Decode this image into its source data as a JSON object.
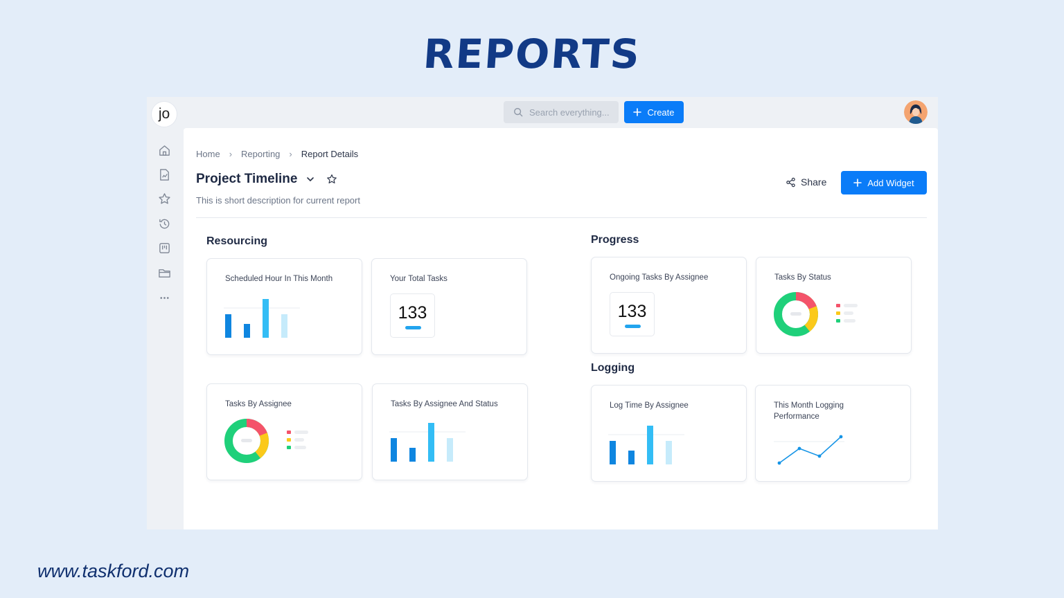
{
  "banner": {
    "heading": "REPORTS",
    "footer_url": "www.taskford.com"
  },
  "app": {
    "logo": "jo",
    "search": {
      "placeholder": "Search everything..."
    },
    "create_label": "Create",
    "sidebar_icons": [
      "home-icon",
      "report-icon",
      "star-icon",
      "history-icon",
      "board-icon",
      "folder-icon",
      "more-icon"
    ]
  },
  "breadcrumb": [
    "Home",
    "Reporting",
    "Report Details"
  ],
  "report": {
    "title": "Project Timeline",
    "description": "This is short description for current report",
    "share_label": "Share",
    "add_widget_label": "Add Widget"
  },
  "sections": {
    "resourcing": "Resourcing",
    "progress": "Progress",
    "logging": "Logging"
  },
  "widgets": {
    "scheduled_hour": {
      "title": "Scheduled Hour In This Month"
    },
    "total_tasks": {
      "title": "Your Total Tasks",
      "value": "133"
    },
    "tasks_by_assignee": {
      "title": "Tasks By Assignee"
    },
    "tasks_by_assignee_status": {
      "title": "Tasks By Assignee And Status"
    },
    "ongoing_tasks": {
      "title": "Ongoing Tasks By Assignee",
      "value": "133"
    },
    "tasks_by_status": {
      "title": "Tasks By Status"
    },
    "log_time": {
      "title": "Log Time By Assignee"
    },
    "logging_performance": {
      "title": "This Month Logging Performance"
    }
  },
  "colors": {
    "accent": "#0a7cf8",
    "bar_dark": "#0f86e0",
    "bar_mid": "#33bdf5",
    "bar_light": "#c6ebfb",
    "donut_green": "#1fd07a",
    "donut_yellow": "#fbc91a",
    "donut_red": "#f4536a",
    "heading": "#123a86"
  }
}
